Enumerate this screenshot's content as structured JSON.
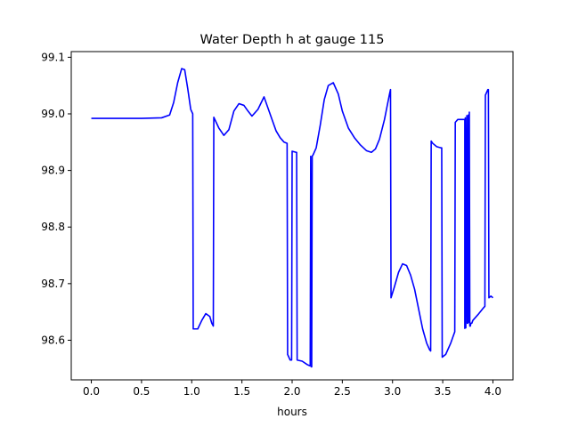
{
  "chart_data": {
    "type": "line",
    "title": "Water Depth h at gauge 115",
    "xlabel": "hours",
    "ylabel": "",
    "xlim": [
      -0.2,
      4.2
    ],
    "ylim": [
      98.53,
      99.11
    ],
    "x_ticks": [
      0.0,
      0.5,
      1.0,
      1.5,
      2.0,
      2.5,
      3.0,
      3.5,
      4.0
    ],
    "x_tick_labels": [
      "0.0",
      "0.5",
      "1.0",
      "1.5",
      "2.0",
      "2.5",
      "3.0",
      "3.5",
      "4.0"
    ],
    "y_ticks": [
      98.6,
      98.7,
      98.8,
      98.9,
      99.0,
      99.1
    ],
    "y_tick_labels": [
      "98.6",
      "98.7",
      "98.8",
      "98.9",
      "99.0",
      "99.1"
    ],
    "grid": false,
    "series": [
      {
        "color": "#0000ff",
        "x": [
          0.0,
          0.25,
          0.5,
          0.7,
          0.78,
          0.82,
          0.86,
          0.9,
          0.93,
          0.96,
          0.99,
          1.01,
          1.015,
          1.02,
          1.06,
          1.1,
          1.14,
          1.18,
          1.2,
          1.215,
          1.22,
          1.27,
          1.32,
          1.37,
          1.42,
          1.47,
          1.52,
          1.56,
          1.6,
          1.66,
          1.72,
          1.78,
          1.8,
          1.84,
          1.88,
          1.92,
          1.95,
          1.955,
          1.98,
          1.995,
          2.0,
          2.04,
          2.045,
          2.05,
          2.1,
          2.15,
          2.175,
          2.18,
          2.185,
          2.19,
          2.195,
          2.2,
          2.21,
          2.24,
          2.28,
          2.32,
          2.36,
          2.41,
          2.46,
          2.5,
          2.56,
          2.62,
          2.68,
          2.74,
          2.79,
          2.83,
          2.87,
          2.92,
          2.97,
          2.98,
          2.985,
          3.02,
          3.06,
          3.1,
          3.14,
          3.18,
          3.22,
          3.26,
          3.3,
          3.34,
          3.37,
          3.38,
          3.385,
          3.4,
          3.44,
          3.48,
          3.49,
          3.495,
          3.53,
          3.58,
          3.6,
          3.62,
          3.625,
          3.65,
          3.68,
          3.71,
          3.72,
          3.72,
          3.725,
          3.73,
          3.74,
          3.745,
          3.75,
          3.755,
          3.76,
          3.765,
          3.77,
          3.775,
          3.78,
          3.785,
          3.79,
          3.8,
          3.85,
          3.9,
          3.92,
          3.925,
          3.95,
          3.955,
          3.96,
          3.98,
          4.0
        ]
      }
    ]
  }
}
